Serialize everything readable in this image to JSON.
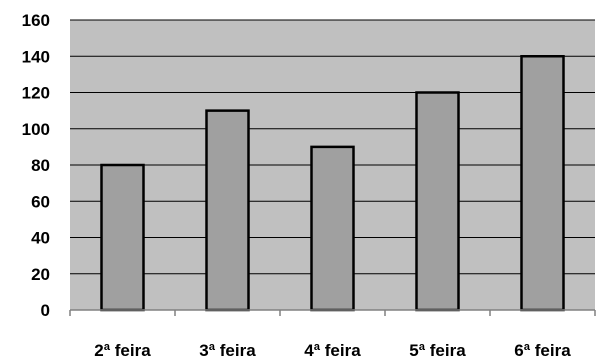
{
  "chart_data": {
    "type": "bar",
    "categories": [
      "2ª feira",
      "3ª feira",
      "4ª feira",
      "5ª feira",
      "6ª feira"
    ],
    "values": [
      80,
      110,
      90,
      120,
      140
    ],
    "title": "",
    "xlabel": "",
    "ylabel": "",
    "ylim": [
      0,
      160
    ],
    "yticks": [
      "0",
      "20",
      "40",
      "60",
      "80",
      "100",
      "120",
      "140",
      "160"
    ],
    "grid": true,
    "legend": "none"
  },
  "colors": {
    "plot_background": "#c0c0c0",
    "bar_fill": "#a0a0a0",
    "bar_stroke": "#000000",
    "gridline": "#000000",
    "axis": "#808080"
  }
}
